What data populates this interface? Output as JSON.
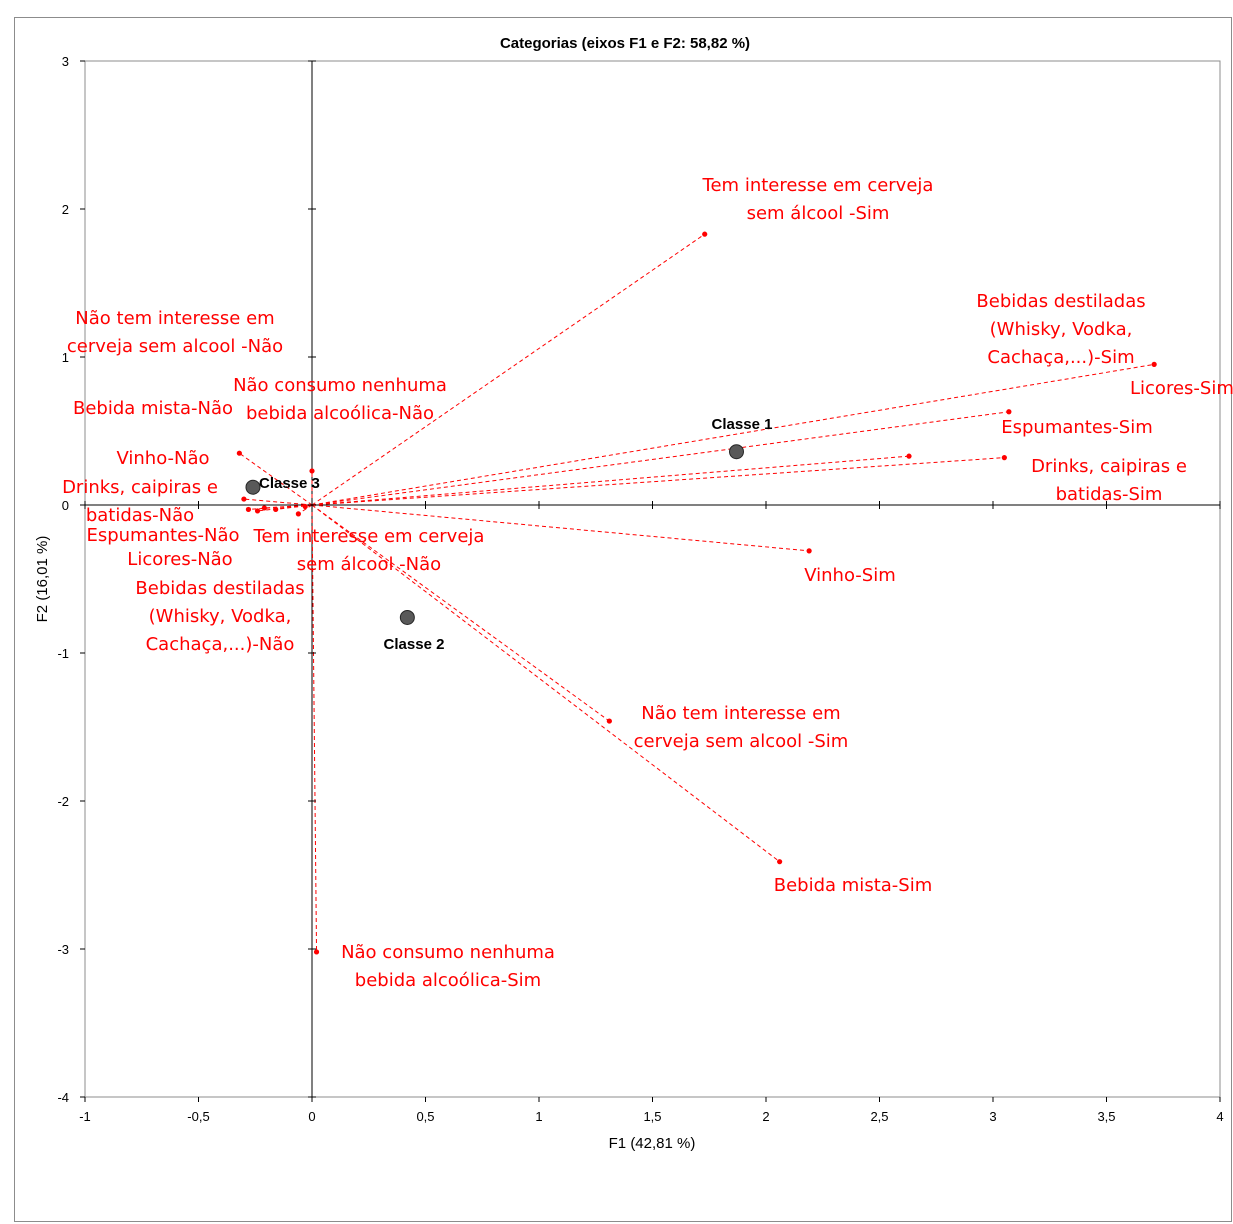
{
  "chart_data": {
    "type": "scatter",
    "title": "Categorias (eixos F1 e F2: 58,82 %)",
    "xlabel": "F1 (42,81 %)",
    "ylabel": "F2 (16,01 %)",
    "xlim": [
      -1,
      4
    ],
    "ylim": [
      -4,
      3
    ],
    "x_ticks": [
      "-1",
      "-0,5",
      "0",
      "0,5",
      "1",
      "1,5",
      "2",
      "2,5",
      "3",
      "3,5",
      "4"
    ],
    "y_ticks": [
      "3",
      "2",
      "1",
      "0",
      "-1",
      "-2",
      "-3",
      "-4"
    ],
    "colors": {
      "categories": "#ff0000",
      "classes": "#595959",
      "axis": "#000000"
    },
    "categories": [
      {
        "label": [
          "Tem interesse em cerveja",
          "sem álcool -Sim"
        ],
        "x": 1.73,
        "y": 1.83
      },
      {
        "label": [
          "Bebidas destiladas",
          "(Whisky, Vodka,",
          "Cachaça,...)-Sim"
        ],
        "x": 3.71,
        "y": 0.95
      },
      {
        "label": [
          "Licores-Sim"
        ],
        "x": 3.07,
        "y": 0.63
      },
      {
        "label": [
          "Espumantes-Sim"
        ],
        "x": 2.63,
        "y": 0.33
      },
      {
        "label": [
          "Drinks, caipiras e",
          "batidas-Sim"
        ],
        "x": 3.05,
        "y": 0.32
      },
      {
        "label": [
          "Vinho-Sim"
        ],
        "x": 2.19,
        "y": -0.31
      },
      {
        "label": [
          "Não tem interesse em",
          "cerveja sem alcool -Sim"
        ],
        "x": 1.31,
        "y": -1.46
      },
      {
        "label": [
          "Bebida mista-Sim"
        ],
        "x": 2.06,
        "y": -2.41
      },
      {
        "label": [
          "Não consumo nenhuma",
          "bebida alcoólica-Sim"
        ],
        "x": 0.02,
        "y": -3.02
      },
      {
        "label": [
          "Não tem interesse em",
          "cerveja sem alcool -Não"
        ],
        "x": -0.32,
        "y": 0.35
      },
      {
        "label": [
          "Não consumo nenhuma",
          "bebida alcoólica-Não"
        ],
        "x": 0.0,
        "y": 0.23
      },
      {
        "label": [
          "Bebida mista-Não"
        ],
        "x": -0.3,
        "y": 0.04
      },
      {
        "label": [
          "Vinho-Não"
        ],
        "x": -0.28,
        "y": -0.03
      },
      {
        "label": [
          "Drinks, caipiras e",
          "batidas-Não"
        ],
        "x": -0.24,
        "y": -0.04
      },
      {
        "label": [
          "Espumantes-Não"
        ],
        "x": -0.21,
        "y": -0.02
      },
      {
        "label": [
          "Licores-Não"
        ],
        "x": -0.16,
        "y": -0.03
      },
      {
        "label": [
          "Bebidas destiladas",
          "(Whisky, Vodka,",
          "Cachaça,...)-Não"
        ],
        "x": -0.06,
        "y": -0.06
      },
      {
        "label": [
          "Tem interesse em cerveja",
          "sem álcool -Não"
        ],
        "x": -0.03,
        "y": -0.01
      }
    ],
    "classes": [
      {
        "label": "Classe 1",
        "x": 1.87,
        "y": 0.36
      },
      {
        "label": "Classe 2",
        "x": 0.42,
        "y": -0.76
      },
      {
        "label": "Classe 3",
        "x": -0.26,
        "y": 0.12
      }
    ]
  }
}
